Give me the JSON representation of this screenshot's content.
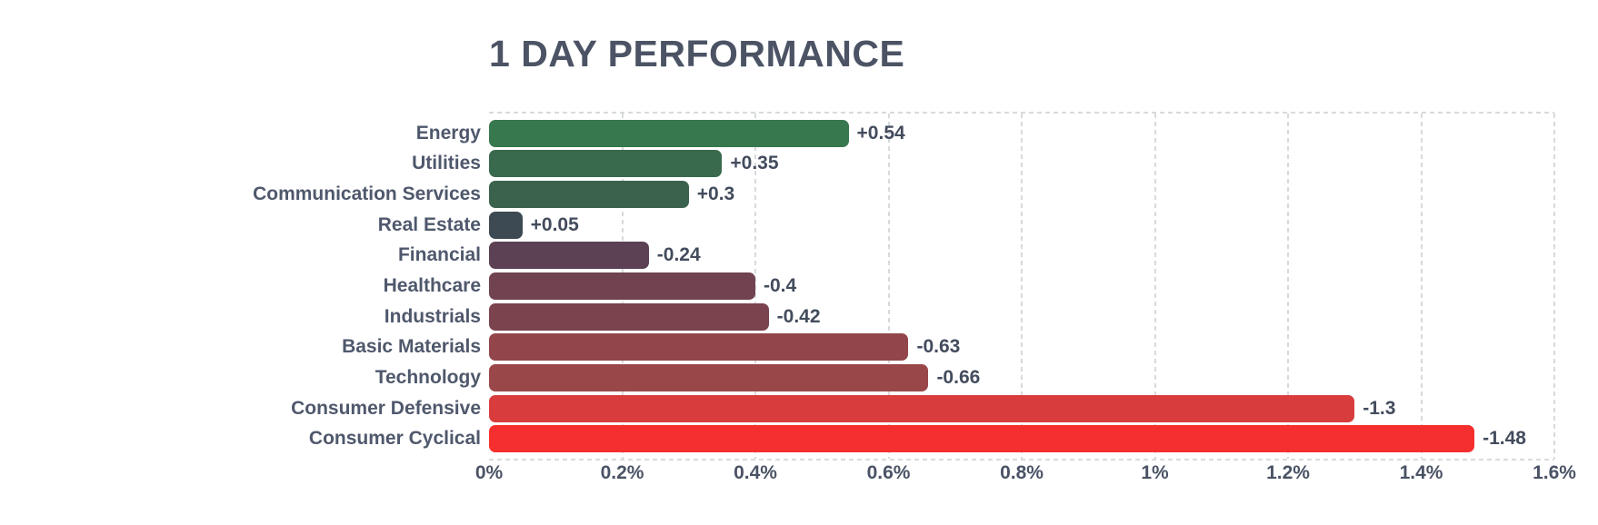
{
  "title": "1 DAY PERFORMANCE",
  "chart_data": {
    "type": "bar",
    "orientation": "horizontal",
    "title": "1 DAY PERFORMANCE",
    "xlabel": "",
    "ylabel": "",
    "x_axis": {
      "min": 0,
      "max": 1.6,
      "unit": "%",
      "tick_step": 0.2,
      "ticks": [
        "0%",
        "0.2%",
        "0.4%",
        "0.6%",
        "0.8%",
        "1%",
        "1.2%",
        "1.4%",
        "1.6%"
      ],
      "grid": "dashed-vertical"
    },
    "note": "bar length encodes absolute value of change; color encodes sign/magnitude (green=gain, slate=flat, red=loss)",
    "bars": [
      {
        "category": "Energy",
        "value": 0.54,
        "label": "+0.54",
        "color": "#37784e"
      },
      {
        "category": "Utilities",
        "value": 0.35,
        "label": "+0.35",
        "color": "#3a6a4e"
      },
      {
        "category": "Communication Services",
        "value": 0.3,
        "label": "+0.3",
        "color": "#3b624d"
      },
      {
        "category": "Real Estate",
        "value": 0.05,
        "label": "+0.05",
        "color": "#3d4a53"
      },
      {
        "category": "Financial",
        "value": -0.24,
        "label": "-0.24",
        "color": "#5c4154"
      },
      {
        "category": "Healthcare",
        "value": -0.4,
        "label": "-0.4",
        "color": "#714250"
      },
      {
        "category": "Industrials",
        "value": -0.42,
        "label": "-0.42",
        "color": "#7a434e"
      },
      {
        "category": "Basic Materials",
        "value": -0.63,
        "label": "-0.63",
        "color": "#92464b"
      },
      {
        "category": "Technology",
        "value": -0.66,
        "label": "-0.66",
        "color": "#9a4749"
      },
      {
        "category": "Consumer Defensive",
        "value": -1.3,
        "label": "-1.3",
        "color": "#d93c3c"
      },
      {
        "category": "Consumer Cyclical",
        "value": -1.48,
        "label": "-1.48",
        "color": "#f52f2f"
      }
    ],
    "legend": null
  },
  "colors": {
    "title_text": "#4b5364",
    "category_text": "#4f586c",
    "value_text": "#434c5d",
    "tick_text": "#4a5365",
    "gridline": "#d7dadd",
    "background": "#ffffff"
  }
}
